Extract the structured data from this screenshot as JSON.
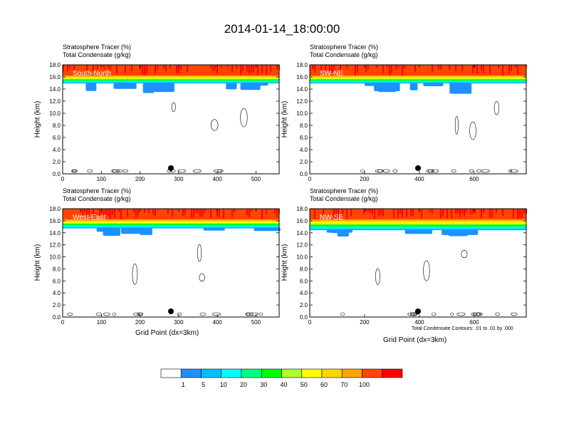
{
  "page": {
    "title": "2014-01-14_18:00:00"
  },
  "panel_text": {
    "line1": "Stratosphere Tracer   (%)",
    "line2": "Total Condensate   (g/kg)",
    "ylabel": "Height (km)",
    "xlabel": "Grid Point (dx=3km)",
    "contour_note": "Total Condensate Contours: .01 to .01 by .000"
  },
  "colors": {
    "levels": [
      "#ffffff",
      "#1e90ff",
      "#00bfff",
      "#00ffff",
      "#00ff7f",
      "#00ff00",
      "#adff2f",
      "#ffff00",
      "#ffd700",
      "#ffa500",
      "#ff4500",
      "#ff0000"
    ],
    "label_bg": "#ff0000",
    "label_text": "#ffffff"
  },
  "colorbar": {
    "labels": [
      "1",
      "5",
      "10",
      "20",
      "30",
      "40",
      "50",
      "60",
      "70",
      "100"
    ]
  },
  "chart_data": [
    {
      "type": "heatmap",
      "name": "South-North",
      "ylim": [
        0,
        18
      ],
      "yticks": [
        "0.0",
        "2.0",
        "4.0",
        "6.0",
        "8.0",
        "10.0",
        "12.0",
        "14.0",
        "16.0",
        "18.0"
      ],
      "xlim": [
        0,
        560
      ],
      "xticks": [
        0,
        100,
        200,
        300,
        400,
        500
      ],
      "marker_x": 280,
      "tracer_band": {
        "red_bottom_km": 16.2,
        "low_km": 15.0,
        "blue_patch_base_km": 13.0
      }
    },
    {
      "type": "heatmap",
      "name": "SW-NE",
      "ylim": [
        0,
        18
      ],
      "yticks": [
        "0.0",
        "2.0",
        "4.0",
        "6.0",
        "8.0",
        "10.0",
        "12.0",
        "14.0",
        "16.0",
        "18.0"
      ],
      "xlim": [
        0,
        790
      ],
      "xticks": [
        0,
        200,
        400,
        600
      ],
      "marker_x": 395,
      "tracer_band": {
        "red_bottom_km": 16.2,
        "low_km": 15.0,
        "blue_patch_base_km": 13.5
      }
    },
    {
      "type": "heatmap",
      "name": "West-East",
      "ylim": [
        0,
        18
      ],
      "yticks": [
        "0.0",
        "2.0",
        "4.0",
        "6.0",
        "8.0",
        "10.0",
        "12.0",
        "14.0",
        "16.0",
        "18.0"
      ],
      "xlim": [
        0,
        560
      ],
      "xticks": [
        0,
        100,
        200,
        300,
        400,
        500
      ],
      "marker_x": 280,
      "tracer_band": {
        "red_bottom_km": 16.2,
        "low_km": 14.8,
        "blue_patch_base_km": 13.5
      }
    },
    {
      "type": "heatmap",
      "name": "NW-SE",
      "ylim": [
        0,
        18
      ],
      "yticks": [
        "0.0",
        "2.0",
        "4.0",
        "6.0",
        "8.0",
        "10.0",
        "12.0",
        "14.0",
        "16.0",
        "18.0"
      ],
      "xlim": [
        0,
        790
      ],
      "xticks": [
        0,
        200,
        400,
        600
      ],
      "marker_x": 395,
      "tracer_band": {
        "red_bottom_km": 16.2,
        "low_km": 14.5,
        "blue_patch_base_km": 13.5
      }
    }
  ]
}
